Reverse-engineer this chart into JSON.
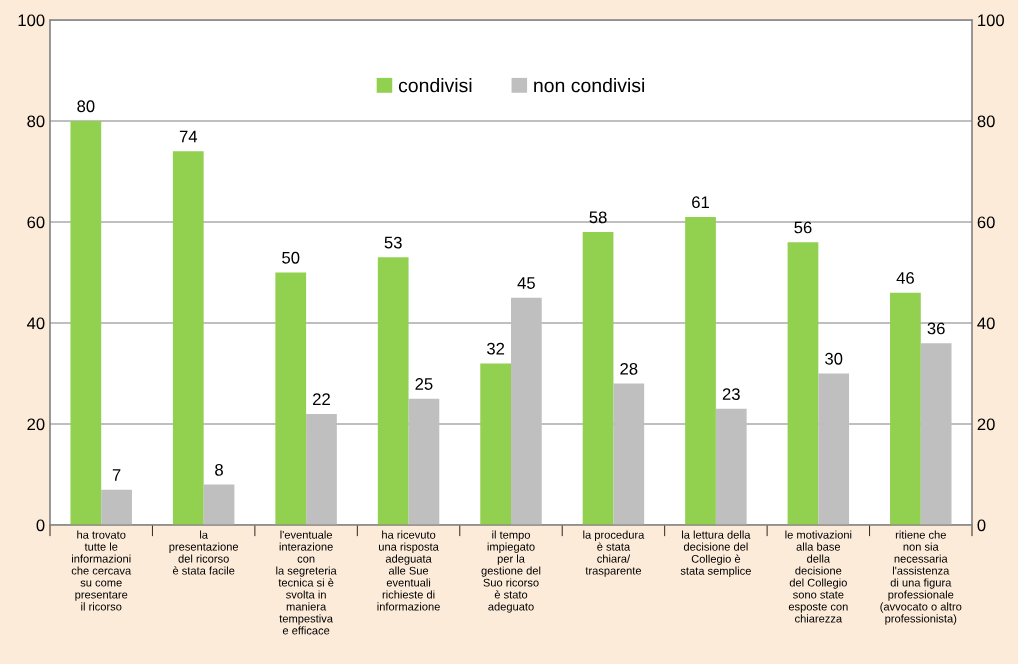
{
  "chart_data": {
    "type": "bar",
    "categories": [
      "ha trovato\ntutte le\ninformazioni\nche cercava\nsu come\npresentare\nil ricorso",
      "la\npresentazione\ndel ricorso\nè stata facile",
      "l'eventuale\ninterazione\ncon\nla segreteria\ntecnica si è\nsvolta in\nmaniera\ntempestiva\ne efficace",
      "ha ricevuto\nuna risposta\nadeguata\nalle Sue\neventuali\nrichieste di\ninformazione",
      "il tempo\nimpiegato\nper la\ngestione del\nSuo ricorso\nè stato\nadeguato",
      "la procedura\nè stata\nchiara/\ntrasparente",
      "la lettura della\ndecisione del\nCollegio è\nstata semplice",
      "le motivazioni\nalla base\ndella\ndecisione\ndel Collegio\nsono state\nesposte con\nchiarezza",
      "ritiene che\nnon sia\nnecessaria\nl'assistenza\ndi una figura\nprofessionale\n(avvocato o altro\nprofessionista)"
    ],
    "series": [
      {
        "name": "condivisi",
        "color": "#92d050",
        "values": [
          80,
          74,
          50,
          53,
          32,
          58,
          61,
          56,
          46
        ]
      },
      {
        "name": "non condivisi",
        "color": "#bfbfbf",
        "values": [
          7,
          8,
          22,
          25,
          45,
          28,
          23,
          30,
          36
        ]
      }
    ],
    "ylim": [
      0,
      100
    ],
    "yticks": [
      0,
      20,
      40,
      60,
      80,
      100
    ],
    "y2lim": [
      0,
      100
    ],
    "y2ticks": [
      0,
      20,
      40,
      60,
      80,
      100
    ],
    "grid": "y",
    "legend": "top",
    "data_labels": true
  }
}
